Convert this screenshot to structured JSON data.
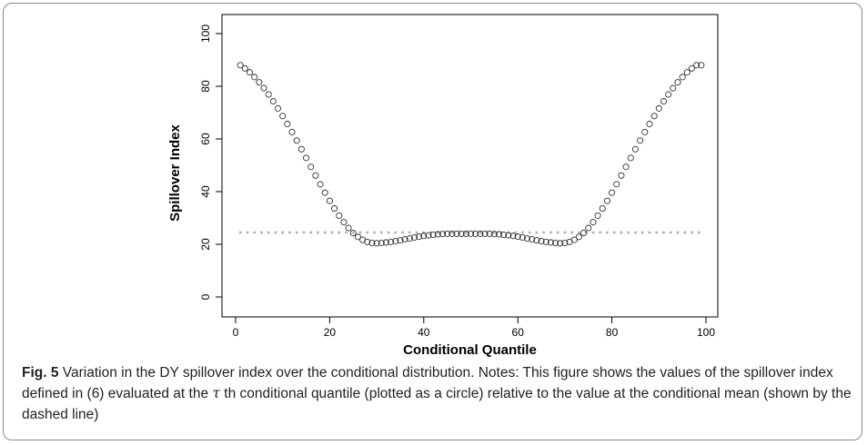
{
  "chart_data": {
    "type": "scatter",
    "xlabel": "Conditional Quantile",
    "ylabel": "Spillover Index",
    "xlim": [
      0,
      100
    ],
    "ylim": [
      0,
      100
    ],
    "xticks": [
      "0",
      "20",
      "40",
      "60",
      "80",
      "100"
    ],
    "yticks": [
      "0",
      "20",
      "40",
      "60",
      "80",
      "100"
    ],
    "grid": false,
    "series": [
      {
        "marker": "circle",
        "x": [
          1,
          2,
          3,
          4,
          5,
          6,
          7,
          8,
          9,
          10,
          11,
          12,
          13,
          14,
          15,
          16,
          17,
          18,
          19,
          20,
          21,
          22,
          23,
          24,
          25,
          26,
          27,
          28,
          29,
          30,
          31,
          32,
          33,
          34,
          35,
          36,
          37,
          38,
          39,
          40,
          41,
          42,
          43,
          44,
          45,
          46,
          47,
          48,
          49,
          50,
          51,
          52,
          53,
          54,
          55,
          56,
          57,
          58,
          59,
          60,
          61,
          62,
          63,
          64,
          65,
          66,
          67,
          68,
          69,
          70,
          71,
          72,
          73,
          74,
          75,
          76,
          77,
          78,
          79,
          80,
          81,
          82,
          83,
          84,
          85,
          86,
          87,
          88,
          89,
          90,
          91,
          92,
          93,
          94,
          95,
          96,
          97,
          98,
          99
        ],
        "y": [
          88.0,
          86.8,
          85.3,
          83.5,
          81.5,
          79.3,
          76.9,
          74.3,
          71.6,
          68.7,
          65.7,
          62.6,
          59.4,
          56.1,
          52.8,
          49.4,
          46.1,
          42.8,
          39.6,
          36.5,
          33.6,
          30.9,
          28.4,
          26.2,
          24.3,
          22.8,
          21.7,
          20.9,
          20.5,
          20.4,
          20.5,
          20.7,
          20.9,
          21.2,
          21.5,
          21.9,
          22.2,
          22.6,
          22.9,
          23.2,
          23.4,
          23.6,
          23.8,
          23.9,
          24.0,
          24.0,
          24.0,
          24.0,
          24.0,
          24.0,
          24.0,
          24.0,
          24.0,
          24.0,
          23.9,
          23.8,
          23.6,
          23.4,
          23.2,
          22.9,
          22.6,
          22.2,
          21.9,
          21.5,
          21.2,
          20.9,
          20.7,
          20.5,
          20.4,
          20.5,
          20.9,
          21.7,
          22.8,
          24.3,
          26.2,
          28.4,
          30.9,
          33.6,
          36.5,
          39.6,
          42.8,
          46.1,
          49.4,
          52.8,
          56.1,
          59.4,
          62.6,
          65.7,
          68.7,
          71.6,
          74.3,
          76.9,
          79.3,
          81.5,
          83.5,
          85.3,
          86.8,
          88.0,
          88.0
        ]
      },
      {
        "marker": "dashed-line",
        "x": [
          1,
          99
        ],
        "y": [
          24.5,
          24.5
        ]
      }
    ]
  },
  "caption": {
    "label": "Fig. 5",
    "text_before_tau": "Variation in the DY spillover index over the conditional distribution. Notes: This figure shows the values of the spillover index defined in (6) evaluated at the ",
    "tau": "τ",
    "text_after_tau": " th conditional quantile (plotted as a circle) relative to the value at the conditional mean (shown by the dashed line)"
  },
  "colors": {
    "points": "#333333",
    "dashed_line": "#b3b3b3",
    "axes": "#000000"
  }
}
